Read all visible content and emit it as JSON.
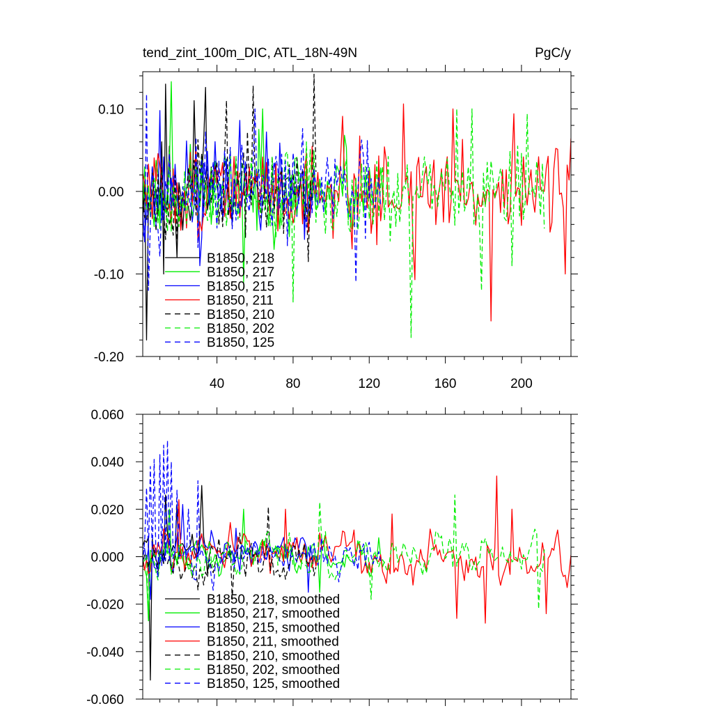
{
  "chart_data": [
    {
      "type": "line",
      "title": "tend_zint_100m_DIC, ATL_18N-49N",
      "units_label": "PgC/y",
      "xlabel": "",
      "ylabel": "",
      "xlim": [
        1,
        226
      ],
      "ylim": [
        -0.2,
        0.145
      ],
      "x_ticks": [
        40,
        80,
        120,
        160,
        200
      ],
      "x_tick_labels": [
        "40",
        "80",
        "120",
        "160",
        "200"
      ],
      "y_ticks": [
        -0.2,
        -0.1,
        0.0,
        0.1
      ],
      "y_tick_labels": [
        "-0.20",
        "-0.10",
        "0.00",
        "0.10"
      ],
      "legend_position": "lower-left",
      "series": [
        {
          "name": "B1850, 218",
          "color": "#000000",
          "dash": "solid",
          "length": 38,
          "seed": 11,
          "amp": 0.05,
          "offset": 0.0,
          "peaks": [
            [
              3,
              -0.18
            ],
            [
              13,
              0.13
            ],
            [
              12,
              -0.1
            ],
            [
              19,
              -0.08
            ],
            [
              34,
              0.126
            ],
            [
              28,
              0.11
            ]
          ]
        },
        {
          "name": "B1850, 217",
          "color": "#00ee00",
          "dash": "solid",
          "length": 128,
          "seed": 23,
          "amp": 0.045,
          "offset": 0.0,
          "peaks": [
            [
              16,
              0.133
            ],
            [
              54,
              -0.11
            ],
            [
              64,
              0.1
            ],
            [
              107,
              0.068
            ]
          ]
        },
        {
          "name": "B1850, 215",
          "color": "#0000ff",
          "dash": "solid",
          "length": 92,
          "seed": 37,
          "amp": 0.045,
          "offset": 0.0,
          "peaks": [
            [
              10,
              0.098
            ],
            [
              31,
              -0.09
            ],
            [
              52,
              0.086
            ],
            [
              66,
              0.072
            ]
          ]
        },
        {
          "name": "B1850, 211",
          "color": "#ff0000",
          "dash": "solid",
          "length": 226,
          "seed": 51,
          "amp": 0.045,
          "offset": 0.0,
          "peaks": [
            [
              106,
              0.091
            ],
            [
              138,
              0.106
            ],
            [
              144,
              -0.107
            ],
            [
              184,
              -0.157
            ],
            [
              164,
              0.1
            ],
            [
              196,
              0.094
            ],
            [
              223,
              -0.1
            ]
          ]
        },
        {
          "name": "B1850, 210",
          "color": "#000000",
          "dash": "dashed",
          "length": 92,
          "seed": 67,
          "amp": 0.045,
          "offset": 0.0,
          "peaks": [
            [
              45,
              0.11
            ],
            [
              59,
              0.128
            ],
            [
              91,
              0.142
            ],
            [
              88,
              -0.085
            ]
          ]
        },
        {
          "name": "B1850, 202",
          "color": "#00ee00",
          "dash": "dashed",
          "length": 212,
          "seed": 79,
          "amp": 0.045,
          "offset": 0.0,
          "peaks": [
            [
              80,
              -0.134
            ],
            [
              142,
              -0.177
            ],
            [
              179,
              -0.12
            ],
            [
              166,
              0.1
            ],
            [
              174,
              0.1
            ],
            [
              203,
              0.094
            ],
            [
              195,
              -0.09
            ]
          ]
        },
        {
          "name": "B1850, 125",
          "color": "#0000ff",
          "dash": "dashed",
          "length": 126,
          "seed": 97,
          "amp": 0.045,
          "offset": 0.0,
          "peaks": [
            [
              3,
              0.118
            ],
            [
              113,
              -0.11
            ],
            [
              4,
              -0.12
            ],
            [
              60,
              0.1
            ]
          ]
        }
      ]
    },
    {
      "type": "line",
      "title": "",
      "xlabel": "",
      "ylabel": "",
      "xlim": [
        1,
        226
      ],
      "ylim": [
        -0.06,
        0.06
      ],
      "x_ticks": [
        40,
        80,
        120,
        160,
        200
      ],
      "x_tick_labels": [
        "",
        "",
        "",
        "",
        ""
      ],
      "y_ticks": [
        -0.06,
        -0.04,
        -0.02,
        0.0,
        0.02,
        0.04,
        0.06
      ],
      "y_tick_labels": [
        "-0.060",
        "-0.040",
        "-0.020",
        "0.000",
        "0.020",
        "0.040",
        "0.060"
      ],
      "legend_position": "lower-left",
      "series": [
        {
          "name": "B1850, 218, smoothed",
          "color": "#000000",
          "dash": "solid",
          "length": 38,
          "seed": 111,
          "amp": 0.009,
          "offset": 0.005,
          "peaks": [
            [
              5,
              -0.052
            ],
            [
              13,
              0.026
            ],
            [
              32,
              0.03
            ],
            [
              19,
              0.022
            ]
          ]
        },
        {
          "name": "B1850, 217, smoothed",
          "color": "#00ee00",
          "dash": "solid",
          "length": 128,
          "seed": 123,
          "amp": 0.008,
          "offset": 0.0,
          "peaks": [
            [
              4,
              -0.027
            ],
            [
              15,
              0.02
            ],
            [
              54,
              0.02
            ],
            [
              94,
              -0.015
            ]
          ]
        },
        {
          "name": "B1850, 215, smoothed",
          "color": "#0000ff",
          "dash": "solid",
          "length": 92,
          "seed": 137,
          "amp": 0.008,
          "offset": 0.003,
          "peaks": [
            [
              5,
              -0.018
            ],
            [
              22,
              0.022
            ],
            [
              50,
              0.012
            ],
            [
              88,
              -0.015
            ]
          ]
        },
        {
          "name": "B1850, 211, smoothed",
          "color": "#ff0000",
          "dash": "solid",
          "length": 226,
          "seed": 151,
          "amp": 0.009,
          "offset": 0.0,
          "peaks": [
            [
              20,
              0.024
            ],
            [
              76,
              0.02
            ],
            [
              132,
              0.018
            ],
            [
              166,
              -0.026
            ],
            [
              181,
              -0.028
            ],
            [
              187,
              0.034
            ],
            [
              195,
              0.02
            ],
            [
              213,
              -0.024
            ]
          ]
        },
        {
          "name": "B1850, 210, smoothed",
          "color": "#000000",
          "dash": "dashed",
          "length": 92,
          "seed": 167,
          "amp": 0.008,
          "offset": 0.0,
          "peaks": [
            [
              30,
              -0.014
            ],
            [
              48,
              -0.018
            ],
            [
              67,
              0.021
            ],
            [
              52,
              0.01
            ]
          ]
        },
        {
          "name": "B1850, 202, smoothed",
          "color": "#00ee00",
          "dash": "dashed",
          "length": 212,
          "seed": 179,
          "amp": 0.008,
          "offset": 0.0,
          "peaks": [
            [
              4,
              -0.027
            ],
            [
              94,
              0.023
            ],
            [
              165,
              0.026
            ],
            [
              209,
              -0.022
            ],
            [
              121,
              -0.018
            ]
          ]
        },
        {
          "name": "B1850, 125, smoothed",
          "color": "#0000ff",
          "dash": "dashed",
          "length": 126,
          "seed": 197,
          "amp": 0.008,
          "offset": 0.0,
          "peaks": [
            [
              3,
              0.029
            ],
            [
              5,
              0.038
            ],
            [
              7,
              0.041
            ],
            [
              10,
              0.043
            ],
            [
              12,
              0.047
            ],
            [
              14,
              0.049
            ],
            [
              16,
              0.04
            ],
            [
              19,
              0.028
            ],
            [
              25,
              0.02
            ],
            [
              30,
              0.032
            ]
          ]
        }
      ]
    }
  ]
}
